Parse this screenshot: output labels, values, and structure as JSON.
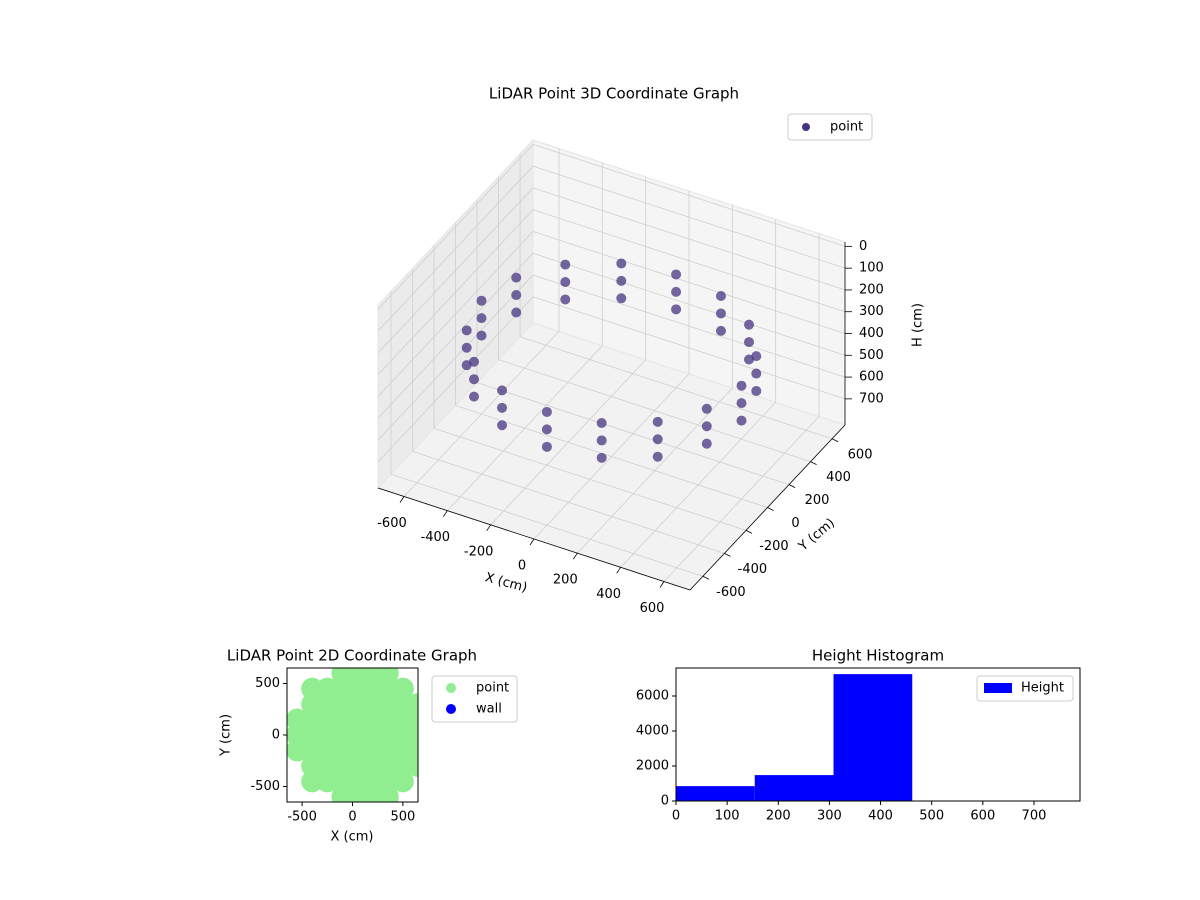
{
  "chart_data": [
    {
      "type": "scatter3d",
      "title": "LiDAR Point 3D Coordinate Graph",
      "x_label": "X (cm)",
      "y_label": "Y (cm)",
      "z_label": "H (cm)",
      "xlim": [
        -720,
        720
      ],
      "ylim": [
        -720,
        720
      ],
      "zlim": [
        820,
        -20
      ],
      "xticks": [
        -600,
        -400,
        -200,
        0,
        200,
        400,
        600
      ],
      "yticks": [
        -600,
        -400,
        -200,
        0,
        200,
        400,
        600
      ],
      "zticks": [
        0,
        100,
        200,
        300,
        400,
        500,
        600,
        700
      ],
      "grid": true,
      "legend": "upper right",
      "series": [
        {
          "name": "point",
          "color": "#46337e",
          "x": [
            600,
            554,
            424,
            230,
            0,
            -230,
            -424,
            -554,
            -600,
            -554,
            -424,
            -230,
            0,
            230,
            424,
            554,
            600,
            554,
            424,
            230,
            0,
            -230,
            -424,
            -554,
            -600,
            -554,
            -424,
            -230,
            0,
            230,
            424,
            554,
            600,
            554,
            424,
            230,
            0,
            -230,
            -424,
            -554,
            -600,
            -554,
            -424,
            -230,
            0,
            230,
            424,
            554
          ],
          "y": [
            0,
            230,
            424,
            554,
            600,
            554,
            424,
            230,
            0,
            -230,
            -424,
            -554,
            -600,
            -554,
            -424,
            -230,
            0,
            230,
            424,
            554,
            600,
            554,
            424,
            230,
            0,
            -230,
            -424,
            -554,
            -600,
            -554,
            -424,
            -230,
            0,
            230,
            424,
            554,
            600,
            554,
            424,
            230,
            0,
            -230,
            -424,
            -554,
            -600,
            -554,
            -424,
            -230
          ],
          "z": [
            300,
            300,
            300,
            300,
            300,
            300,
            300,
            300,
            300,
            300,
            300,
            300,
            300,
            300,
            300,
            300,
            380,
            380,
            380,
            380,
            380,
            380,
            380,
            380,
            380,
            380,
            380,
            380,
            380,
            380,
            380,
            380,
            460,
            460,
            460,
            460,
            460,
            460,
            460,
            460,
            460,
            460,
            460,
            460,
            460,
            460,
            460,
            460
          ]
        }
      ]
    },
    {
      "type": "scatter",
      "title": "LiDAR Point 2D Coordinate Graph",
      "x_label": "X (cm)",
      "y_label": "Y (cm)",
      "xlim": [
        -650,
        650
      ],
      "ylim": [
        -650,
        650
      ],
      "xticks": [
        -500,
        0,
        500
      ],
      "yticks": [
        -500,
        0,
        500
      ],
      "legend": "outside right",
      "series": [
        {
          "name": "point",
          "color": "lightgreen",
          "x": [
            -550,
            -550,
            -550,
            -400,
            -400,
            -400,
            -400,
            -400,
            -400,
            -400,
            -250,
            -250,
            -250,
            -250,
            -250,
            -250,
            -250,
            -100,
            -100,
            -100,
            -100,
            -100,
            -100,
            -100,
            -100,
            -100,
            50,
            50,
            50,
            50,
            50,
            50,
            50,
            50,
            50,
            200,
            200,
            200,
            200,
            200,
            200,
            200,
            200,
            200,
            350,
            350,
            350,
            350,
            350,
            350,
            350,
            350,
            350,
            500,
            500,
            500,
            500,
            500,
            500,
            500,
            650,
            650,
            650,
            650,
            650
          ],
          "y": [
            -150,
            0,
            150,
            -450,
            -300,
            -150,
            0,
            150,
            300,
            450,
            -450,
            -300,
            -150,
            0,
            150,
            300,
            450,
            -600,
            -450,
            -300,
            -150,
            0,
            150,
            300,
            450,
            600,
            -600,
            -450,
            -300,
            -150,
            0,
            150,
            300,
            450,
            600,
            -600,
            -450,
            -300,
            -150,
            0,
            150,
            300,
            450,
            600,
            -600,
            -450,
            -300,
            -150,
            0,
            150,
            300,
            450,
            600,
            -450,
            -300,
            -150,
            0,
            150,
            300,
            450,
            -300,
            -150,
            0,
            150,
            300
          ]
        },
        {
          "name": "wall",
          "color": "blue",
          "x": [],
          "y": []
        }
      ]
    },
    {
      "type": "histogram",
      "title": "Height Histogram",
      "bins": [
        0,
        154,
        308,
        462,
        616,
        770
      ],
      "xlim": [
        0,
        790
      ],
      "ylim": [
        0,
        7600
      ],
      "xticks": [
        0,
        100,
        200,
        300,
        400,
        500,
        600,
        700
      ],
      "yticks": [
        0,
        2000,
        4000,
        6000
      ],
      "legend": "upper right",
      "series": [
        {
          "name": "Height",
          "color": "blue",
          "values": [
            850,
            1480,
            7250,
            0,
            0
          ]
        }
      ]
    }
  ]
}
